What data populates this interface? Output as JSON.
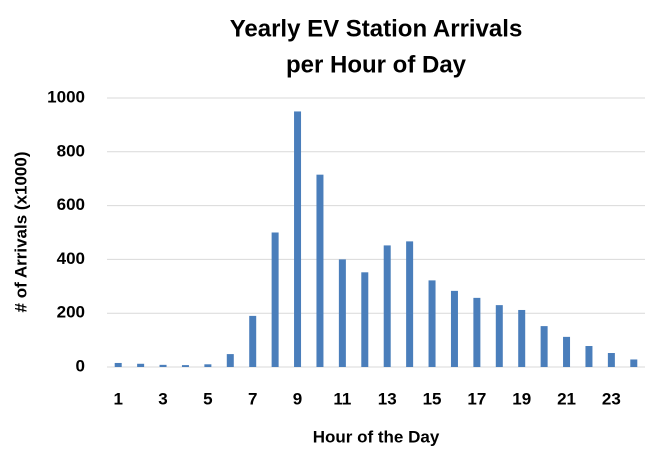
{
  "chart_data": {
    "type": "bar",
    "title": [
      "Yearly EV Station Arrivals",
      "per Hour of Day"
    ],
    "x_label": "Hour of the Day",
    "y_label": "# of Arrivals (x1000)",
    "categories": [
      "1",
      null,
      "3",
      null,
      "5",
      null,
      "7",
      null,
      "9",
      null,
      "11",
      null,
      "13",
      null,
      "15",
      null,
      "17",
      null,
      "19",
      null,
      "21",
      null,
      "23",
      null
    ],
    "values": [
      15,
      12,
      8,
      7,
      10,
      48,
      190,
      500,
      950,
      715,
      400,
      352,
      452,
      467,
      322,
      283,
      257,
      230,
      212,
      152,
      112,
      78,
      52,
      28
    ],
    "color": "#4a7ebb",
    "ylim": [
      0,
      1000
    ],
    "yticks": [
      0,
      200,
      400,
      600,
      800,
      1000
    ],
    "grid": true
  }
}
